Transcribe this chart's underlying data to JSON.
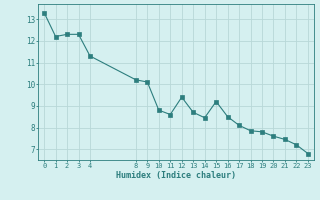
{
  "x": [
    0,
    1,
    2,
    3,
    4,
    8,
    9,
    10,
    11,
    12,
    13,
    14,
    15,
    16,
    17,
    18,
    19,
    20,
    21,
    22,
    23
  ],
  "y": [
    13.3,
    12.2,
    12.3,
    12.3,
    11.3,
    10.2,
    10.1,
    8.8,
    8.6,
    9.4,
    8.7,
    8.45,
    9.2,
    8.5,
    8.1,
    7.85,
    7.8,
    7.6,
    7.45,
    7.2,
    6.8
  ],
  "xticks": [
    0,
    1,
    2,
    3,
    4,
    8,
    9,
    10,
    11,
    12,
    13,
    14,
    15,
    16,
    17,
    18,
    19,
    20,
    21,
    22,
    23
  ],
  "yticks": [
    7,
    8,
    9,
    10,
    11,
    12,
    13
  ],
  "ylim": [
    6.5,
    13.7
  ],
  "xlim": [
    -0.5,
    23.5
  ],
  "xlabel": "Humidex (Indice chaleur)",
  "line_color": "#2d7e7e",
  "marker_color": "#2d7e7e",
  "bg_color": "#d5f0f0",
  "grid_color": "#b8d8d8",
  "tick_label_color": "#2d7e7e",
  "xlabel_color": "#2d7e7e"
}
